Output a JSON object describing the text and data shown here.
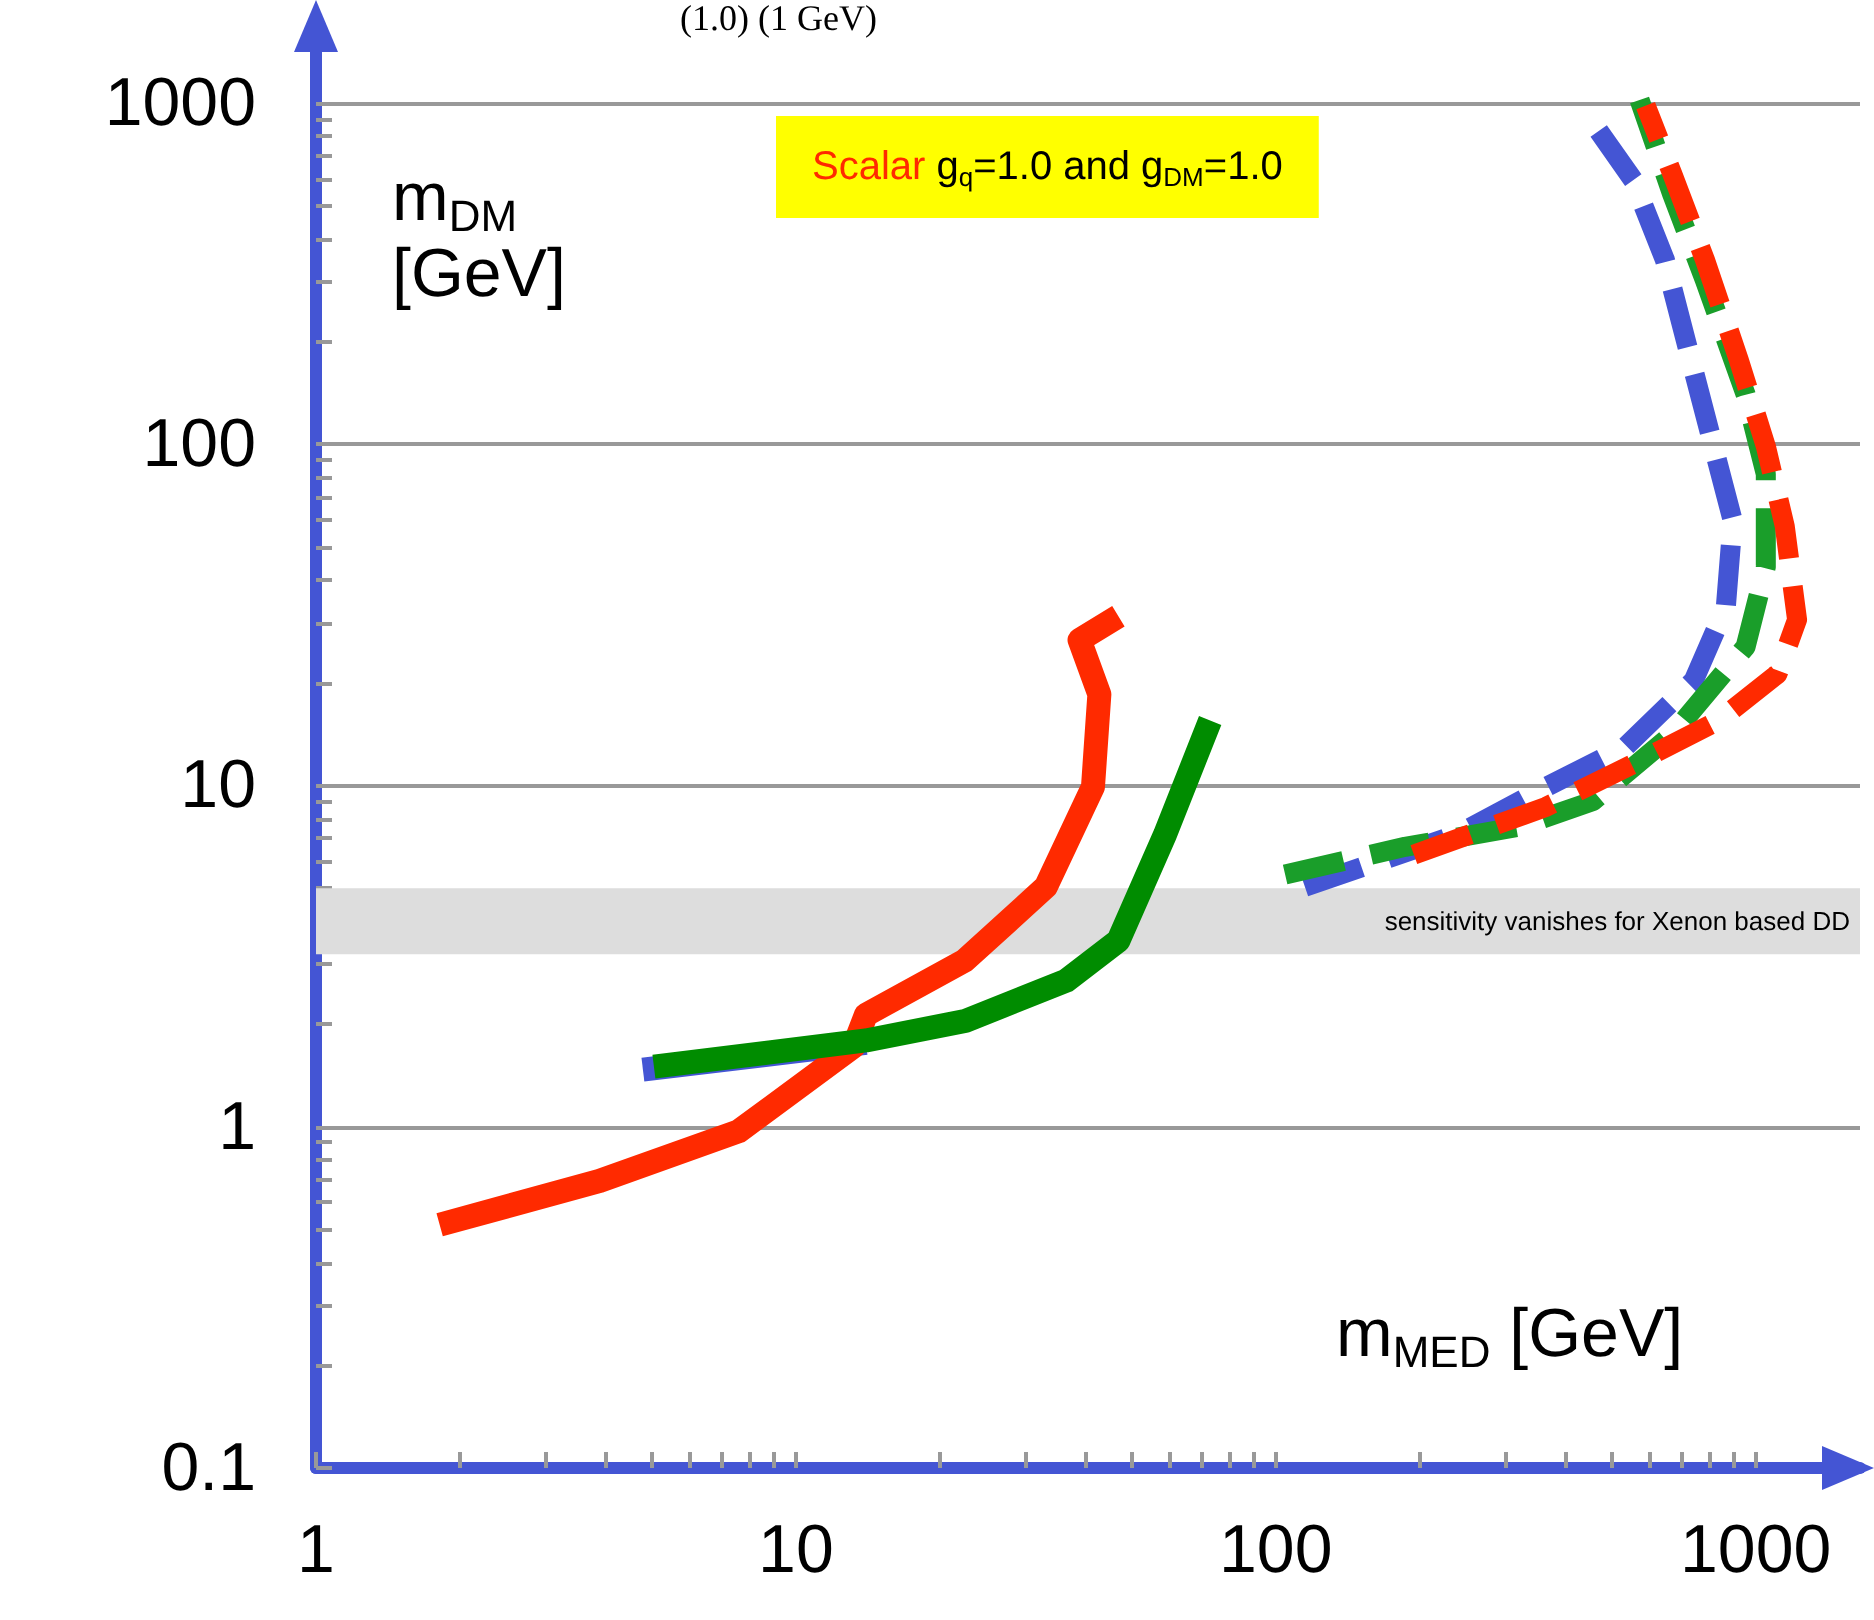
{
  "chart_data": {
    "type": "line",
    "title": "Scalar g$_{q}$=1.0 and g$_{DM}$=1.0",
    "xlabel": "m$_{MED}$ [GeV]",
    "ylabel": "m$_{DM}$\n[GeV]",
    "log": "xy",
    "grid": "y",
    "xlim": [
      1,
      1650
    ],
    "xticks": [
      1,
      10,
      100,
      1000
    ],
    "ylim": [
      0.1,
      1750
    ],
    "yticks": [
      0.1,
      1,
      10,
      100,
      1000
    ],
    "bands": [
      {
        "axis": "y",
        "from": 3.2,
        "to": 5,
        "label": "sensitivity vanishes for Xenon based DD",
        "color": "#dddddd"
      }
    ],
    "annotations": [
      "(1.0) (1 GeV)"
    ],
    "series": [
      {
        "color": "#4455d4",
        "line_style": "solid",
        "x": [
          4.8,
          14
        ],
        "values": [
          1.47,
          1.76
        ]
      },
      {
        "color": "#ff2a00",
        "line_style": "solid",
        "x": [
          1.81,
          3.9,
          7.6,
          13.2,
          14,
          22.5,
          33.2,
          41.6,
          42.9,
          39,
          47
        ],
        "values": [
          0.516,
          0.694,
          0.97,
          1.72,
          2.13,
          3.07,
          5.05,
          9.9,
          18.5,
          26.7,
          31.3
        ]
      },
      {
        "color": "#008c00",
        "line_style": "solid",
        "x": [
          5.06,
          14,
          22.5,
          36.6,
          47,
          58.8,
          73
        ],
        "values": [
          1.5,
          1.79,
          2.04,
          2.68,
          3.51,
          7.19,
          15.5
        ]
      },
      {
        "color": "#4455d4",
        "line_style": "dashed",
        "x": [
          115,
          240,
          366,
          536,
          743,
          867,
          896,
          765,
          647,
          556,
          444
        ],
        "values": [
          5.05,
          7.2,
          9.9,
          13,
          20.3,
          33.5,
          59.7,
          140,
          347,
          594,
          930
        ]
      },
      {
        "color": "#1a9e2a",
        "line_style": "dashed",
        "x": [
          104.6,
          186,
          321,
          458,
          670,
          953,
          1050,
          1050,
          953,
          784,
          670,
          573
        ],
        "values": [
          5.48,
          6.61,
          7.57,
          9,
          14.1,
          25.5,
          43.7,
          81.8,
          140,
          302,
          540,
          1020
        ]
      },
      {
        "color": "#ff2a00",
        "line_style": "dashed",
        "x": [
          194,
          366,
          573,
          837,
          1110,
          1220,
          1150,
          1050,
          923,
          784,
          670,
          590
        ],
        "values": [
          6.27,
          8.66,
          11.8,
          15.5,
          21.2,
          30.6,
          57.5,
          98.7,
          176,
          347,
          621,
          982
        ]
      }
    ]
  }
}
